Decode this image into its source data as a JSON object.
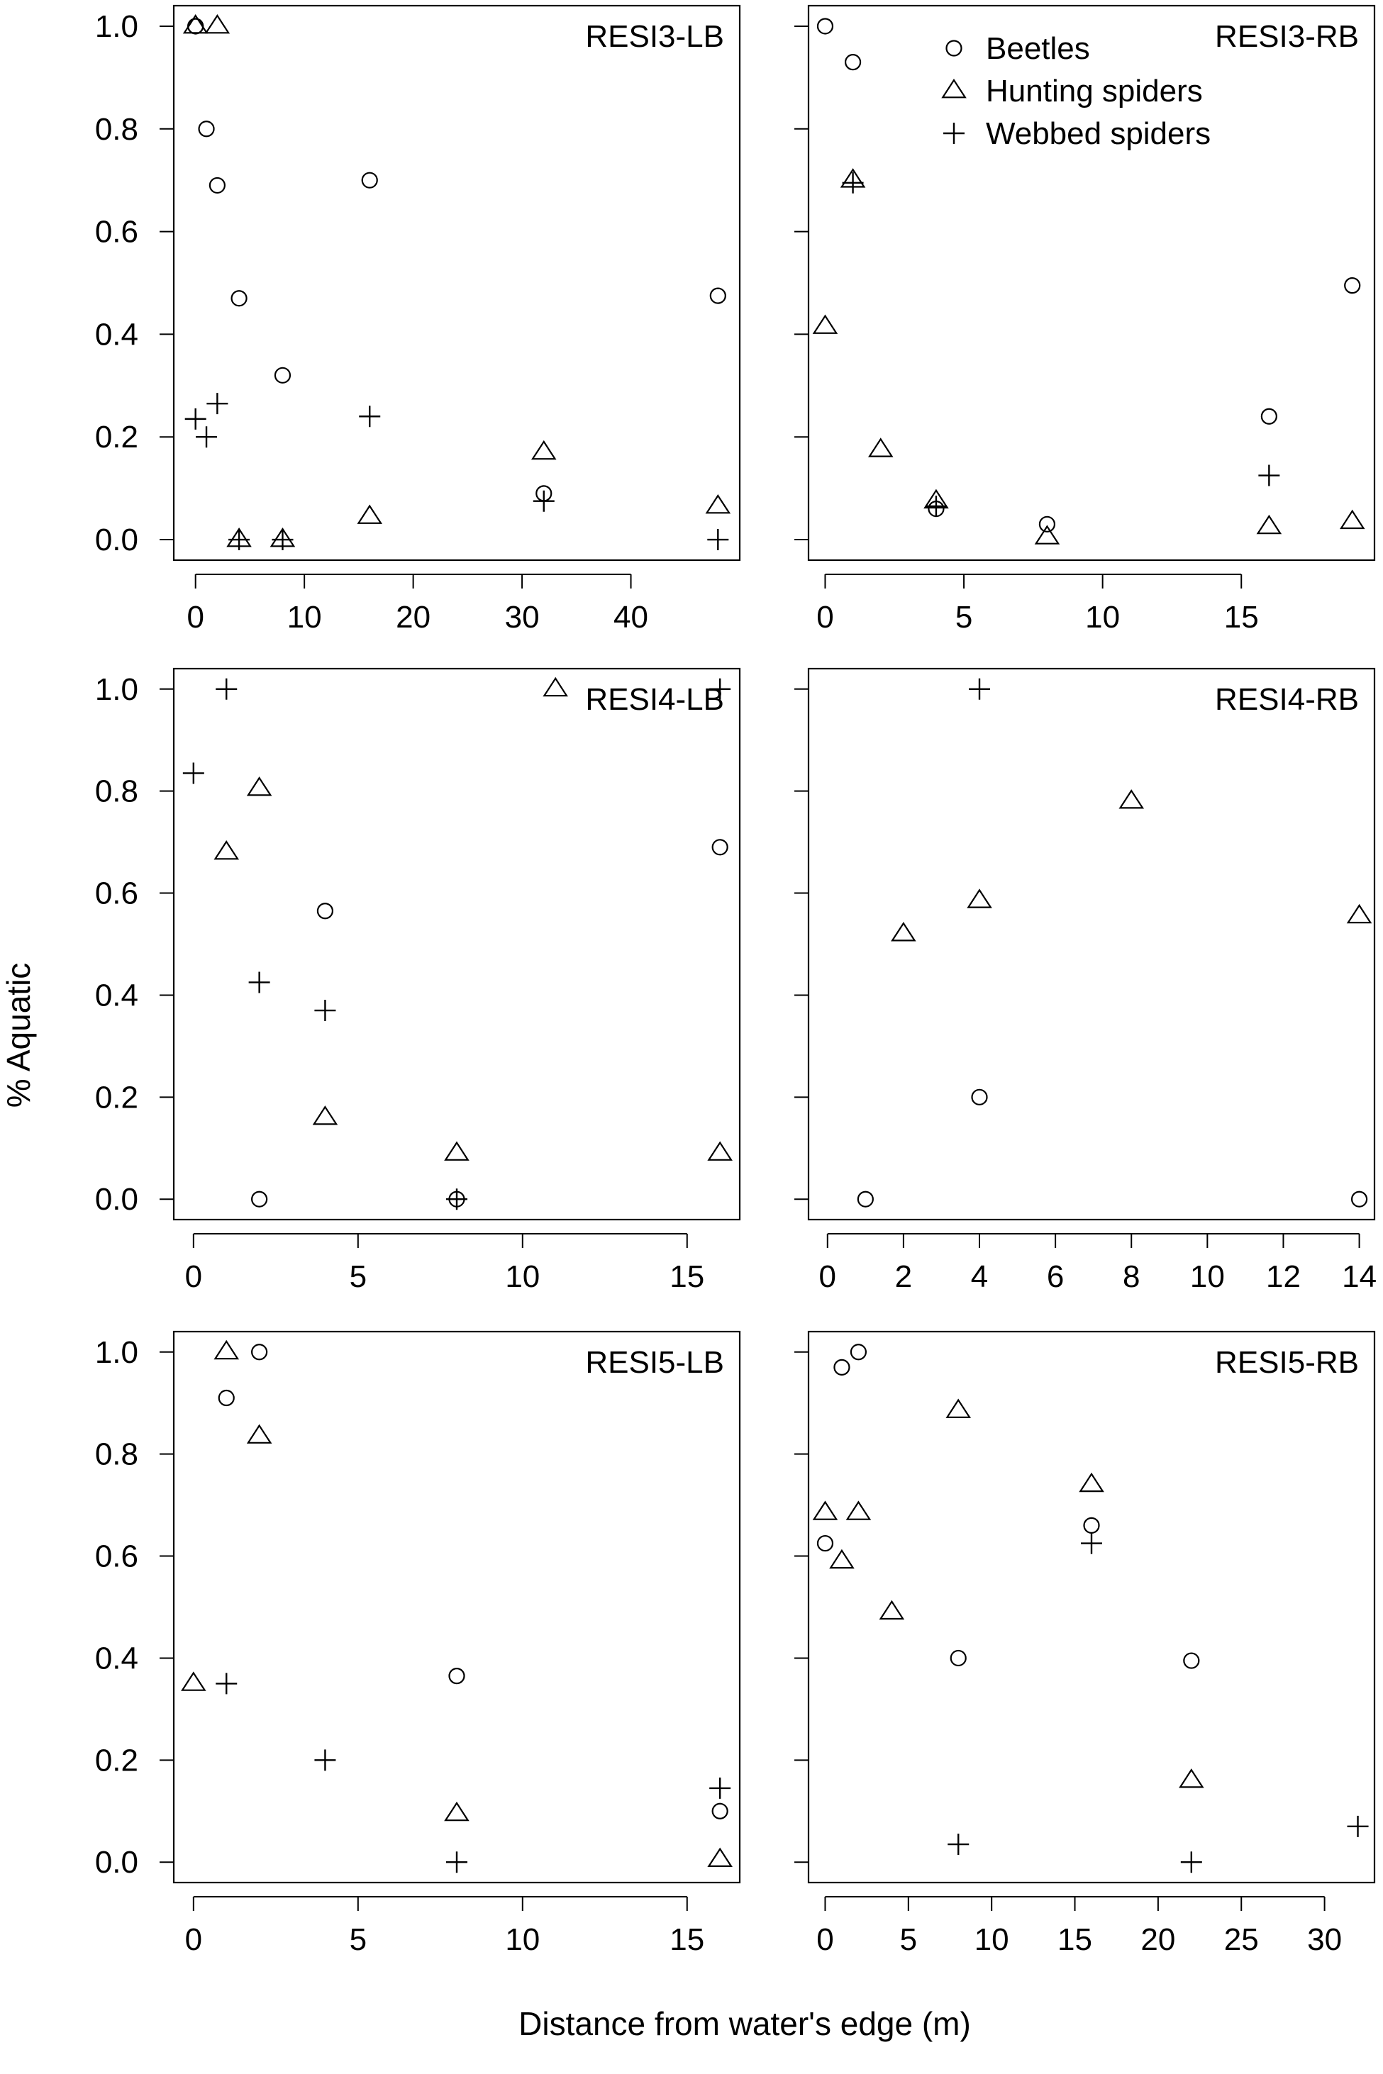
{
  "figure": {
    "ylabel": "% Aquatic",
    "xlabel": "Distance from water's edge (m)",
    "yticks": [
      "0.0",
      "0.2",
      "0.4",
      "0.6",
      "0.8",
      "1.0"
    ],
    "legend": [
      {
        "name": "Beetles",
        "symbol": "circle"
      },
      {
        "name": "Hunting spiders",
        "symbol": "triangle"
      },
      {
        "name": "Webbed spiders",
        "symbol": "plus"
      }
    ]
  },
  "chart_data": [
    {
      "type": "scatter",
      "title": "RESI3-LB",
      "xlim": [
        -2,
        50
      ],
      "xticks": [
        0,
        10,
        20,
        30,
        40
      ],
      "ylim": [
        -0.04,
        1.04
      ],
      "series": [
        {
          "name": "Beetles",
          "x": [
            0,
            0,
            1,
            2,
            4,
            8,
            16,
            32,
            48
          ],
          "y": [
            1.0,
            1.0,
            0.8,
            0.69,
            0.47,
            0.32,
            0.7,
            0.09,
            0.475
          ]
        },
        {
          "name": "Hunting spiders",
          "x": [
            0,
            2,
            4,
            8,
            16,
            32,
            48
          ],
          "y": [
            1.0,
            1.0,
            0.0,
            0.0,
            0.045,
            0.17,
            0.065
          ]
        },
        {
          "name": "Webbed spiders",
          "x": [
            0,
            1,
            2,
            4,
            8,
            16,
            32,
            48
          ],
          "y": [
            0.235,
            0.2,
            0.265,
            0.0,
            0.0,
            0.24,
            0.075,
            0.0
          ]
        }
      ]
    },
    {
      "type": "scatter",
      "title": "RESI3-RB",
      "xlim": [
        -0.6,
        19.8
      ],
      "xticks": [
        0,
        5,
        10,
        15
      ],
      "ylim": [
        -0.04,
        1.04
      ],
      "series": [
        {
          "name": "Beetles",
          "x": [
            0,
            1,
            4,
            8,
            16,
            19
          ],
          "y": [
            1.0,
            0.93,
            0.06,
            0.03,
            0.24,
            0.495
          ]
        },
        {
          "name": "Hunting spiders",
          "x": [
            0,
            1,
            2,
            4,
            8,
            16,
            19
          ],
          "y": [
            0.415,
            0.7,
            0.175,
            0.075,
            0.005,
            0.025,
            0.035
          ]
        },
        {
          "name": "Webbed spiders",
          "x": [
            1,
            4,
            16
          ],
          "y": [
            0.695,
            0.065,
            0.125
          ]
        }
      ]
    },
    {
      "type": "scatter",
      "title": "RESI4-LB",
      "xlim": [
        -0.6,
        16.6
      ],
      "xticks": [
        0,
        5,
        10,
        15
      ],
      "ylim": [
        -0.04,
        1.04
      ],
      "series": [
        {
          "name": "Beetles",
          "x": [
            2,
            4,
            8,
            16
          ],
          "y": [
            0.0,
            0.565,
            0.0,
            0.69
          ]
        },
        {
          "name": "Hunting spiders",
          "x": [
            1,
            2,
            4,
            8,
            11,
            16
          ],
          "y": [
            0.68,
            0.805,
            0.16,
            0.09,
            1.0,
            0.09
          ]
        },
        {
          "name": "Webbed spiders",
          "x": [
            0,
            1,
            2,
            4,
            8,
            16
          ],
          "y": [
            0.835,
            1.0,
            0.425,
            0.37,
            0.0,
            1.0
          ]
        }
      ]
    },
    {
      "type": "scatter",
      "title": "RESI4-RB",
      "xlim": [
        -0.5,
        14.4
      ],
      "xticks": [
        0,
        2,
        4,
        6,
        8,
        10,
        12,
        14
      ],
      "ylim": [
        -0.04,
        1.04
      ],
      "series": [
        {
          "name": "Beetles",
          "x": [
            1,
            4,
            14
          ],
          "y": [
            0.0,
            0.2,
            0.0
          ]
        },
        {
          "name": "Hunting spiders",
          "x": [
            2,
            4,
            8,
            14
          ],
          "y": [
            0.52,
            0.585,
            0.78,
            0.555
          ]
        },
        {
          "name": "Webbed spiders",
          "x": [
            4
          ],
          "y": [
            1.0
          ]
        }
      ]
    },
    {
      "type": "scatter",
      "title": "RESI5-LB",
      "xlim": [
        -0.6,
        16.6
      ],
      "xticks": [
        0,
        5,
        10,
        15
      ],
      "ylim": [
        -0.04,
        1.04
      ],
      "series": [
        {
          "name": "Beetles",
          "x": [
            1,
            2,
            8,
            16
          ],
          "y": [
            0.91,
            1.0,
            0.365,
            0.1
          ]
        },
        {
          "name": "Hunting spiders",
          "x": [
            0,
            1,
            2,
            8,
            16
          ],
          "y": [
            0.35,
            1.0,
            0.835,
            0.095,
            0.005
          ]
        },
        {
          "name": "Webbed spiders",
          "x": [
            1,
            4,
            8,
            16
          ],
          "y": [
            0.35,
            0.2,
            0.0,
            0.145
          ]
        }
      ]
    },
    {
      "type": "scatter",
      "title": "RESI5-RB",
      "xlim": [
        -1,
        33
      ],
      "xticks": [
        0,
        5,
        10,
        15,
        20,
        25,
        30
      ],
      "ylim": [
        -0.04,
        1.04
      ],
      "series": [
        {
          "name": "Beetles",
          "x": [
            0,
            1,
            2,
            8,
            16,
            22
          ],
          "y": [
            0.625,
            0.97,
            1.0,
            0.4,
            0.66,
            0.395
          ]
        },
        {
          "name": "Hunting spiders",
          "x": [
            0,
            1,
            2,
            4,
            8,
            16,
            22
          ],
          "y": [
            0.685,
            0.59,
            0.685,
            0.49,
            0.885,
            0.74,
            0.16
          ]
        },
        {
          "name": "Webbed spiders",
          "x": [
            8,
            16,
            22,
            32
          ],
          "y": [
            0.035,
            0.625,
            0.0,
            0.07
          ]
        }
      ]
    }
  ]
}
